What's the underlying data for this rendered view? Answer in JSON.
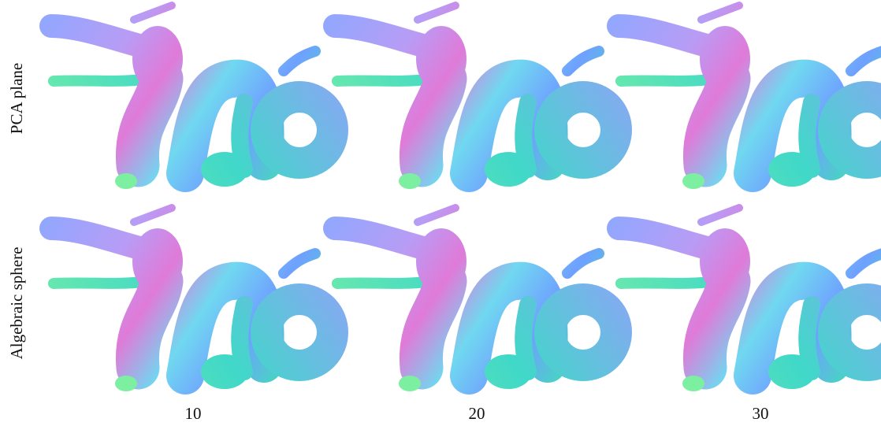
{
  "rows": [
    {
      "label": "PCA plane"
    },
    {
      "label": "Algebraic sphere"
    }
  ],
  "columns": [
    {
      "label": "10"
    },
    {
      "label": "20"
    },
    {
      "label": "30"
    }
  ]
}
